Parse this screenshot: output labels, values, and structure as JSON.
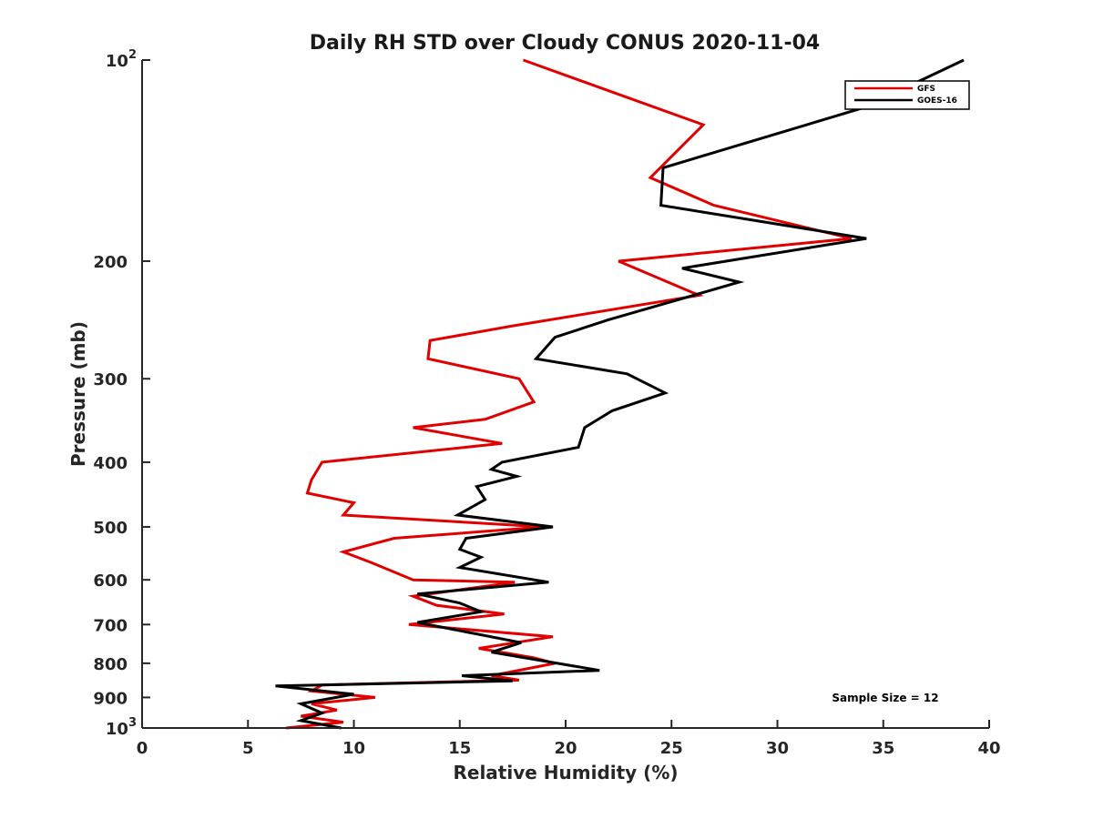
{
  "chart_data": {
    "type": "line",
    "title": "Daily RH STD over Cloudy CONUS 2020-11-04",
    "xlabel": "Relative Humidity (%)",
    "ylabel": "Pressure (mb)",
    "xlim": [
      0,
      40
    ],
    "ylim": [
      100,
      1000
    ],
    "yscale": "log",
    "y_reversed": true,
    "x_ticks": [
      "0",
      "5",
      "10",
      "15",
      "20",
      "25",
      "30",
      "35",
      "40"
    ],
    "y_ticks": [
      {
        "value": 100,
        "base": "10",
        "exp": "2"
      },
      {
        "value": 200,
        "label": "200"
      },
      {
        "value": 300,
        "label": "300"
      },
      {
        "value": 400,
        "label": "400"
      },
      {
        "value": 500,
        "label": "500"
      },
      {
        "value": 600,
        "label": "600"
      },
      {
        "value": 700,
        "label": "700"
      },
      {
        "value": 800,
        "label": "800"
      },
      {
        "value": 900,
        "label": "900"
      },
      {
        "value": 1000,
        "base": "10",
        "exp": "3"
      }
    ],
    "legend_position": "top-right",
    "annotation": "Sample Size = 12",
    "series": [
      {
        "name": "GFS",
        "color": "#e00000",
        "points": [
          [
            18.0,
            100
          ],
          [
            26.5,
            125
          ],
          [
            24.0,
            150
          ],
          [
            27.0,
            165
          ],
          [
            33.5,
            185
          ],
          [
            22.5,
            200
          ],
          [
            26.3,
            225
          ],
          [
            17.5,
            250
          ],
          [
            13.6,
            263
          ],
          [
            13.5,
            280
          ],
          [
            17.8,
            300
          ],
          [
            18.5,
            325
          ],
          [
            16.2,
            345
          ],
          [
            12.8,
            355
          ],
          [
            17.0,
            375
          ],
          [
            8.5,
            400
          ],
          [
            8.0,
            425
          ],
          [
            7.8,
            445
          ],
          [
            10.0,
            460
          ],
          [
            9.5,
            480
          ],
          [
            19.0,
            500
          ],
          [
            11.9,
            520
          ],
          [
            9.5,
            545
          ],
          [
            10.8,
            565
          ],
          [
            12.8,
            600
          ],
          [
            17.6,
            605
          ],
          [
            12.8,
            635
          ],
          [
            13.9,
            655
          ],
          [
            17.1,
            675
          ],
          [
            12.6,
            700
          ],
          [
            19.4,
            730
          ],
          [
            15.9,
            760
          ],
          [
            18.5,
            785
          ],
          [
            19.5,
            800
          ],
          [
            16.5,
            835
          ],
          [
            17.8,
            848
          ],
          [
            8.5,
            862
          ],
          [
            8.0,
            880
          ],
          [
            11.0,
            900
          ],
          [
            8.0,
            920
          ],
          [
            9.2,
            940
          ],
          [
            7.5,
            960
          ],
          [
            9.5,
            980
          ],
          [
            6.8,
            1000
          ]
        ]
      },
      {
        "name": "GOES-16",
        "color": "#000000",
        "points": [
          [
            38.8,
            100
          ],
          [
            34.0,
            118
          ],
          [
            24.6,
            145
          ],
          [
            24.5,
            165
          ],
          [
            34.2,
            185
          ],
          [
            25.5,
            205
          ],
          [
            28.2,
            215
          ],
          [
            22.0,
            245
          ],
          [
            19.5,
            260
          ],
          [
            18.6,
            280
          ],
          [
            22.9,
            295
          ],
          [
            24.7,
            315
          ],
          [
            22.2,
            335
          ],
          [
            20.9,
            355
          ],
          [
            20.6,
            380
          ],
          [
            17.0,
            400
          ],
          [
            16.5,
            410
          ],
          [
            17.7,
            420
          ],
          [
            15.8,
            435
          ],
          [
            16.2,
            455
          ],
          [
            14.9,
            480
          ],
          [
            19.4,
            500
          ],
          [
            15.3,
            520
          ],
          [
            15.0,
            540
          ],
          [
            16.0,
            555
          ],
          [
            15.0,
            575
          ],
          [
            19.2,
            605
          ],
          [
            13.0,
            630
          ],
          [
            15.0,
            650
          ],
          [
            16.0,
            670
          ],
          [
            13.0,
            695
          ],
          [
            17.9,
            745
          ],
          [
            16.5,
            770
          ],
          [
            21.6,
            820
          ],
          [
            15.1,
            835
          ],
          [
            17.5,
            850
          ],
          [
            6.3,
            865
          ],
          [
            10.0,
            890
          ],
          [
            7.5,
            920
          ],
          [
            8.5,
            950
          ],
          [
            7.5,
            975
          ],
          [
            9.4,
            1000
          ]
        ]
      }
    ]
  }
}
